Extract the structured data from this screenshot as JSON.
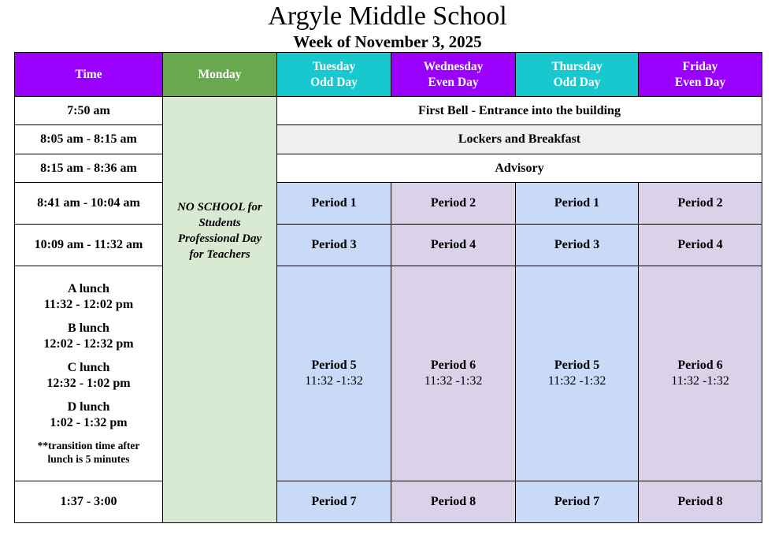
{
  "title": "Argyle Middle School",
  "subtitle": "Week of November 3, 2025",
  "colors": {
    "time_header": "#9900ff",
    "monday_header": "#6aa84f",
    "odd_header": "#17c9cf",
    "even_header": "#9900ff",
    "monday_bg": "#d9ead3",
    "odd_bg": "#c9daf8",
    "even_bg": "#d9d2e9",
    "shared_bg": "#efefef"
  },
  "headers": [
    {
      "line1": "Time",
      "line2": ""
    },
    {
      "line1": "Monday",
      "line2": ""
    },
    {
      "line1": "Tuesday",
      "line2": "Odd Day"
    },
    {
      "line1": "Wednesday",
      "line2": "Even Day"
    },
    {
      "line1": "Thursday",
      "line2": "Odd Day"
    },
    {
      "line1": "Friday",
      "line2": "Even Day"
    }
  ],
  "monday_note": {
    "l1": "NO SCHOOL for",
    "l2": "Students",
    "l3": "Professional Day",
    "l4": "for Teachers"
  },
  "rows": [
    {
      "time": "7:50 am",
      "span": "First Bell - Entrance into the building"
    },
    {
      "time": "8:05 am - 8:15 am",
      "span": "Lockers and Breakfast"
    },
    {
      "time": "8:15 am - 8:36 am",
      "span": "Advisory"
    },
    {
      "time": "8:41 am  - 10:04 am",
      "cells": [
        "Period 1",
        "Period 2",
        "Period 1",
        "Period 2"
      ]
    },
    {
      "time": "10:09 am - 11:32 am",
      "cells": [
        "Period 3",
        "Period 4",
        "Period 3",
        "Period 4"
      ]
    },
    {
      "lunches": [
        {
          "name": "A lunch",
          "time": "11:32 - 12:02 pm"
        },
        {
          "name": "B lunch",
          "time": "12:02 - 12:32 pm"
        },
        {
          "name": "C lunch",
          "time": "12:32 - 1:02 pm"
        },
        {
          "name": "D lunch",
          "time": "1:02 - 1:32 pm"
        }
      ],
      "note": "**transition time after lunch is 5 minutes",
      "cells": [
        "Period 5",
        "Period 6",
        "Period 5",
        "Period 6"
      ],
      "cell_time": "11:32 -1:32"
    },
    {
      "time": "1:37 - 3:00",
      "cells": [
        "Period 7",
        "Period 8",
        "Period 7",
        "Period 8"
      ]
    }
  ]
}
